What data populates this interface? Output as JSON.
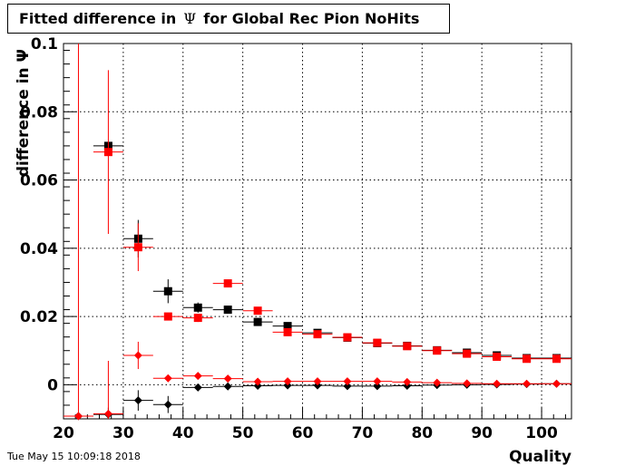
{
  "title": {
    "prefix": "Fitted difference in",
    "symbol": "Ψ",
    "suffix": "for Global Rec Pion NoHits"
  },
  "timestamp": "Tue May 15 10:09:18 2018",
  "chart_data": {
    "type": "scatter",
    "title": "Fitted difference in Ψ for Global Rec Pion NoHits",
    "xlabel": "Quality",
    "ylabel": "difference in Ψ",
    "xlim": [
      20,
      105
    ],
    "ylim": [
      -0.01,
      0.1
    ],
    "x_ticks": [
      20,
      30,
      40,
      50,
      60,
      70,
      80,
      90,
      100
    ],
    "x_tick_labels": [
      "20",
      "30",
      "40",
      "50",
      "60",
      "70",
      "80",
      "90",
      "100"
    ],
    "y_ticks": [
      0,
      0.02,
      0.04,
      0.06,
      0.08,
      0.1
    ],
    "y_tick_labels": [
      "0",
      "0.02",
      "0.04",
      "0.06",
      "0.08",
      "0.1"
    ],
    "grid": true,
    "series": [
      {
        "marker": "square",
        "color": "#000000",
        "x": [
          27.5,
          32.5,
          37.5,
          42.5,
          47.5,
          52.5,
          57.5,
          62.5,
          67.5,
          72.5,
          77.5,
          82.5,
          87.5,
          92.5,
          97.5,
          102.5
        ],
        "y": [
          0.07,
          0.0428,
          0.0274,
          0.0226,
          0.022,
          0.0184,
          0.0172,
          0.0152,
          0.0138,
          0.0122,
          0.0114,
          0.0101,
          0.0094,
          0.0086,
          0.0078,
          0.0078
        ],
        "yerr": [
          0.001,
          0.0055,
          0.0035,
          0.0015,
          0.001,
          0.0006,
          0.0006,
          0.0005,
          0.0004,
          0.0004,
          0.0003,
          0.0003,
          0.0003,
          0.0003,
          0.0003,
          0.0003
        ]
      },
      {
        "marker": "square",
        "color": "#ff0000",
        "x": [
          27.5,
          32.5,
          37.5,
          42.5,
          47.5,
          52.5,
          57.5,
          62.5,
          67.5,
          72.5,
          77.5,
          82.5,
          87.5,
          92.5,
          97.5,
          102.5
        ],
        "y": [
          0.0682,
          0.0403,
          0.02,
          0.0196,
          0.0297,
          0.0217,
          0.0154,
          0.0148,
          0.0139,
          0.0123,
          0.0113,
          0.01,
          0.0091,
          0.0082,
          0.0076,
          0.0076
        ],
        "yerr": [
          0.024,
          0.007,
          0.0008,
          0.0012,
          0.0008,
          0.0005,
          0.0005,
          0.0004,
          0.0004,
          0.0003,
          0.0003,
          0.0003,
          0.0003,
          0.0003,
          0.0003,
          0.0003
        ]
      },
      {
        "marker": "diamond",
        "color": "#000000",
        "x": [
          22.5,
          27.5,
          32.5,
          37.5,
          42.5,
          47.5,
          52.5,
          57.5,
          62.5,
          67.5,
          72.5,
          77.5,
          82.5,
          87.5,
          92.5,
          97.5,
          102.5
        ],
        "y": [
          -0.0092,
          -0.0087,
          -0.0046,
          -0.0058,
          -0.0008,
          -0.0005,
          -0.0003,
          -0.0002,
          -0.0002,
          -0.0004,
          -0.0004,
          -0.0003,
          -0.0001,
          0.0,
          0.0001,
          0.0002,
          0.0003
        ],
        "yerr": [
          0.0,
          0.002,
          0.003,
          0.0025,
          0.0007,
          0.0004,
          0.0003,
          0.0002,
          0.0002,
          0.0002,
          0.0002,
          0.0002,
          0.0002,
          0.0002,
          0.0002,
          0.0002,
          0.0002
        ]
      },
      {
        "marker": "diamond",
        "color": "#ff0000",
        "x": [
          22.5,
          27.5,
          32.5,
          37.5,
          42.5,
          47.5,
          52.5,
          57.5,
          62.5,
          67.5,
          72.5,
          77.5,
          82.5,
          87.5,
          92.5,
          97.5,
          102.5
        ],
        "y": [
          -0.0092,
          -0.0085,
          0.0086,
          0.0019,
          0.0026,
          0.0018,
          0.0009,
          0.001,
          0.001,
          0.001,
          0.001,
          0.0008,
          0.0006,
          0.0004,
          0.0003,
          0.0003,
          0.0003
        ],
        "yerr": [
          0.11,
          0.0155,
          0.004,
          0.0008,
          0.0006,
          0.0004,
          0.0003,
          0.0002,
          0.0002,
          0.0002,
          0.0002,
          0.0002,
          0.0002,
          0.0002,
          0.0002,
          0.0002,
          0.0002
        ]
      }
    ]
  }
}
